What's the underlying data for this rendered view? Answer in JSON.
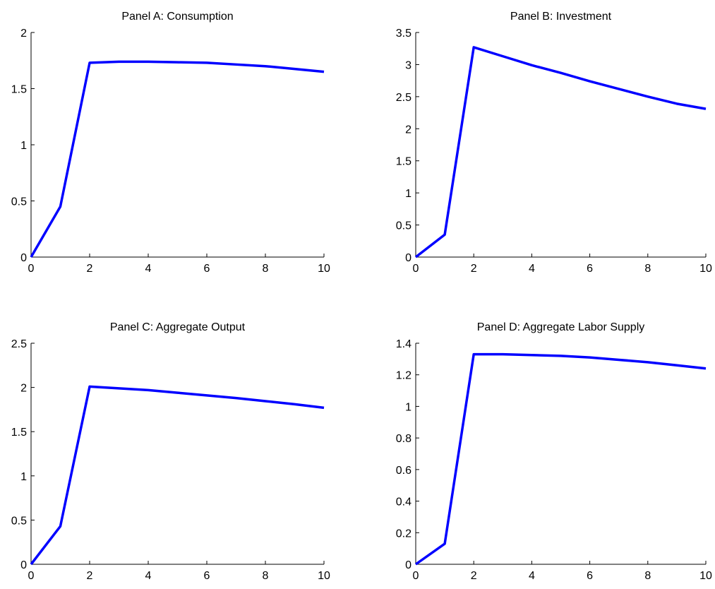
{
  "chart_data": [
    {
      "type": "line",
      "title": "Panel A: Consumption",
      "color": "#0000ff",
      "x": [
        0,
        1,
        2,
        3,
        4,
        5,
        6,
        7,
        8,
        9,
        10
      ],
      "values": [
        0,
        0.45,
        1.73,
        1.74,
        1.74,
        1.735,
        1.73,
        1.715,
        1.7,
        1.675,
        1.65
      ],
      "xlim": [
        0,
        10
      ],
      "xticks": [
        0,
        2,
        4,
        6,
        8,
        10
      ],
      "ylim": [
        0,
        2
      ],
      "yticks": [
        0,
        0.5,
        1,
        1.5,
        2
      ]
    },
    {
      "type": "line",
      "title": "Panel B: Investment",
      "color": "#0000ff",
      "x": [
        0,
        1,
        2,
        3,
        4,
        5,
        6,
        7,
        8,
        9,
        10
      ],
      "values": [
        0,
        0.35,
        3.27,
        3.13,
        2.99,
        2.87,
        2.74,
        2.62,
        2.5,
        2.39,
        2.31
      ],
      "xlim": [
        0,
        10
      ],
      "xticks": [
        0,
        2,
        4,
        6,
        8,
        10
      ],
      "ylim": [
        0,
        3.5
      ],
      "yticks": [
        0,
        0.5,
        1,
        1.5,
        2,
        2.5,
        3,
        3.5
      ]
    },
    {
      "type": "line",
      "title": "Panel C: Aggregate Output",
      "color": "#0000ff",
      "x": [
        0,
        1,
        2,
        3,
        4,
        5,
        6,
        7,
        8,
        9,
        10
      ],
      "values": [
        0,
        0.43,
        2.01,
        1.99,
        1.97,
        1.94,
        1.91,
        1.88,
        1.845,
        1.81,
        1.77
      ],
      "xlim": [
        0,
        10
      ],
      "xticks": [
        0,
        2,
        4,
        6,
        8,
        10
      ],
      "ylim": [
        0,
        2.5
      ],
      "yticks": [
        0,
        0.5,
        1,
        1.5,
        2,
        2.5
      ]
    },
    {
      "type": "line",
      "title": "Panel D: Aggregate Labor Supply",
      "color": "#0000ff",
      "x": [
        0,
        1,
        2,
        3,
        4,
        5,
        6,
        7,
        8,
        9,
        10
      ],
      "values": [
        0,
        0.13,
        1.33,
        1.33,
        1.325,
        1.32,
        1.31,
        1.295,
        1.28,
        1.26,
        1.24
      ],
      "xlim": [
        0,
        10
      ],
      "xticks": [
        0,
        2,
        4,
        6,
        8,
        10
      ],
      "ylim": [
        0,
        1.4
      ],
      "yticks": [
        0,
        0.2,
        0.4,
        0.6,
        0.8,
        1,
        1.2,
        1.4
      ]
    }
  ]
}
